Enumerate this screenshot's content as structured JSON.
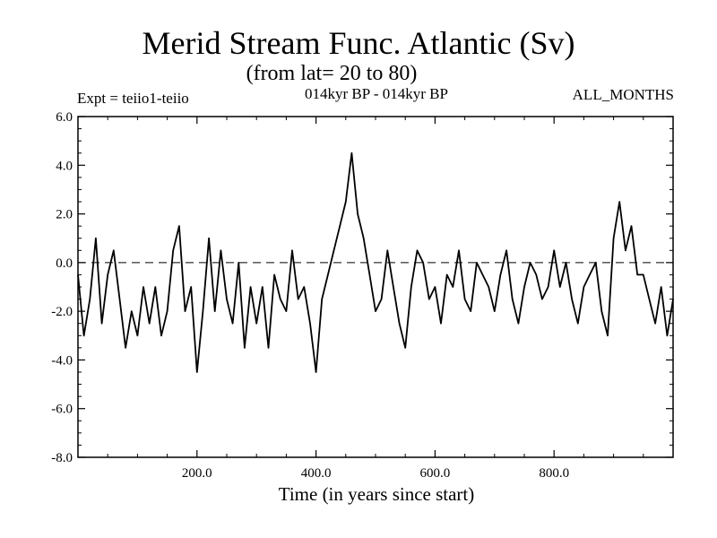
{
  "chart_data": {
    "type": "line",
    "title": "Merid Stream Func. Atlantic (Sv)",
    "subtitle": "(from lat= 20 to 80)",
    "experiment": "Expt = teiio1-teiio",
    "period": "014kyr BP - 014kyr BP",
    "months": "ALL_MONTHS",
    "xlabel": "Time (in years since start)",
    "ylabel": "",
    "xlim": [
      0,
      1000
    ],
    "ylim": [
      -8,
      6
    ],
    "x_ticks": [
      200,
      400,
      600,
      800
    ],
    "x_tick_labels": [
      "200.0",
      "400.0",
      "600.0",
      "800.0"
    ],
    "y_ticks": [
      -8,
      -6,
      -4,
      -2,
      0,
      2,
      4,
      6
    ],
    "y_tick_labels": [
      "-8.0",
      "-6.0",
      "-4.0",
      "-2.0",
      "0.0",
      "2.0",
      "4.0",
      "6.0"
    ],
    "reference_line": 0,
    "series": [
      {
        "name": "Atlantic meridional stream function",
        "x": [
          0,
          10,
          20,
          30,
          40,
          50,
          60,
          70,
          80,
          90,
          100,
          110,
          120,
          130,
          140,
          150,
          160,
          170,
          180,
          190,
          200,
          210,
          220,
          230,
          240,
          250,
          260,
          270,
          280,
          290,
          300,
          310,
          320,
          330,
          340,
          350,
          360,
          370,
          380,
          390,
          400,
          410,
          420,
          430,
          440,
          450,
          460,
          470,
          480,
          490,
          500,
          510,
          520,
          530,
          540,
          550,
          560,
          570,
          580,
          590,
          600,
          610,
          620,
          630,
          640,
          650,
          660,
          670,
          680,
          690,
          700,
          710,
          720,
          730,
          740,
          750,
          760,
          770,
          780,
          790,
          800,
          810,
          820,
          830,
          840,
          850,
          860,
          870,
          880,
          890,
          900,
          910,
          920,
          930,
          940,
          950,
          960,
          970,
          980,
          990,
          1000
        ],
        "values": [
          -0.5,
          -3.0,
          -1.5,
          1.0,
          -2.5,
          -0.5,
          0.5,
          -1.5,
          -3.5,
          -2.0,
          -3.0,
          -1.0,
          -2.5,
          -1.0,
          -3.0,
          -2.0,
          0.5,
          1.5,
          -2.0,
          -1.0,
          -4.5,
          -2.0,
          1.0,
          -2.0,
          0.5,
          -1.5,
          -2.5,
          0.0,
          -3.5,
          -1.0,
          -2.5,
          -1.0,
          -3.5,
          -0.5,
          -1.5,
          -2.0,
          0.5,
          -1.5,
          -1.0,
          -2.5,
          -4.5,
          -1.5,
          -0.5,
          0.5,
          1.5,
          2.5,
          4.5,
          2.0,
          1.0,
          -0.5,
          -2.0,
          -1.5,
          0.5,
          -1.0,
          -2.5,
          -3.5,
          -1.0,
          0.5,
          0.0,
          -1.5,
          -1.0,
          -2.5,
          -0.5,
          -1.0,
          0.5,
          -1.5,
          -2.0,
          0.0,
          -0.5,
          -1.0,
          -2.0,
          -0.5,
          0.5,
          -1.5,
          -2.5,
          -1.0,
          0.0,
          -0.5,
          -1.5,
          -1.0,
          0.5,
          -1.0,
          0.0,
          -1.5,
          -2.5,
          -1.0,
          -0.5,
          0.0,
          -2.0,
          -3.0,
          1.0,
          2.5,
          0.5,
          1.5,
          -0.5,
          -0.5,
          -1.5,
          -2.5,
          -1.0,
          -3.0,
          -1.5
        ]
      }
    ]
  }
}
